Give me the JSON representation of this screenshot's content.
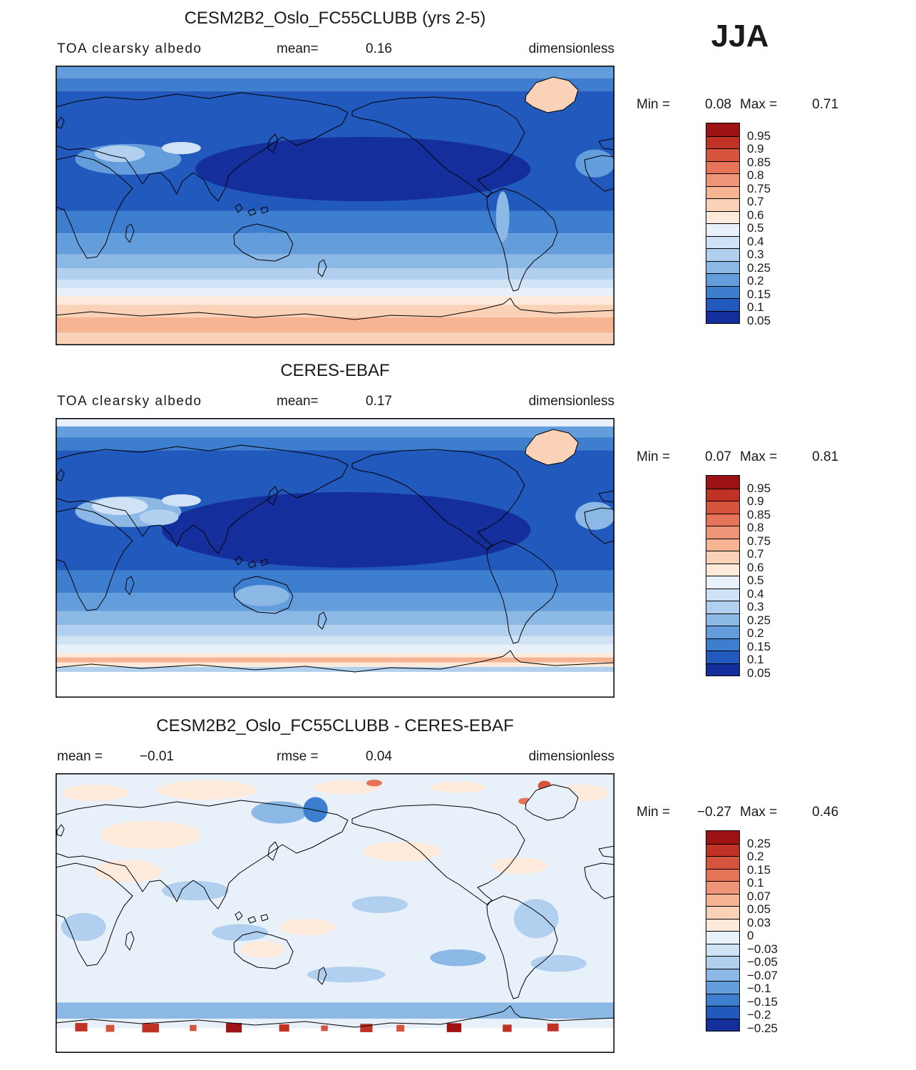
{
  "season": "JJA",
  "chart_data": {
    "type": "filled-contour-map-set",
    "projection": "cylindrical-equidistant 0-360E",
    "palette": [
      "#9e1214",
      "#c03226",
      "#d6543e",
      "#e57458",
      "#ef9477",
      "#f6b493",
      "#fad2b8",
      "#fdeadb",
      "#e8f1fa",
      "#d0e2f5",
      "#b1cfee",
      "#8cb8e6",
      "#639ddb",
      "#3d7ecf",
      "#2159bd",
      "#142f9b"
    ],
    "panels": [
      {
        "title": "CESM2B2_Oslo_FC55CLUBB (yrs 2-5)",
        "var_label": "TOA clearsky albedo",
        "stats": [
          {
            "label": "mean=",
            "value": "0.16"
          }
        ],
        "units": "dimensionless",
        "min_label": "Min =",
        "min_value": "0.08",
        "max_label": "Max =",
        "max_value": "0.71",
        "colorbar_ticks": [
          "0.95",
          "0.9",
          "0.85",
          "0.8",
          "0.75",
          "0.7",
          "0.6",
          "0.5",
          "0.4",
          "0.3",
          "0.25",
          "0.2",
          "0.15",
          "0.1",
          "0.05"
        ],
        "map": {
          "bands": [
            {
              "from": 0.0,
              "to": 0.045,
              "color": 12,
              "value": "0.15-0.2"
            },
            {
              "from": 0.045,
              "to": 0.09,
              "color": 13,
              "value": "0.1-0.15"
            },
            {
              "from": 0.09,
              "to": 0.52,
              "color": 14,
              "value": "0.05-0.1"
            },
            {
              "from": 0.52,
              "to": 0.6,
              "color": 13,
              "value": "0.1-0.15"
            },
            {
              "from": 0.6,
              "to": 0.675,
              "color": 12,
              "value": "0.15-0.2"
            },
            {
              "from": 0.675,
              "to": 0.725,
              "color": 11,
              "value": "0.2-0.25"
            },
            {
              "from": 0.725,
              "to": 0.765,
              "color": 10,
              "value": "0.25-0.3"
            },
            {
              "from": 0.765,
              "to": 0.795,
              "color": 9,
              "value": "0.3-0.4"
            },
            {
              "from": 0.795,
              "to": 0.825,
              "color": 8,
              "value": "0.4-0.5"
            },
            {
              "from": 0.825,
              "to": 0.855,
              "color": 7,
              "value": "0.5-0.6"
            },
            {
              "from": 0.855,
              "to": 0.9,
              "color": 6,
              "value": "0.6-0.7"
            },
            {
              "from": 0.9,
              "to": 0.955,
              "color": 5,
              "value": "0.7-0.75"
            },
            {
              "from": 0.955,
              "to": 1.0,
              "color": 6,
              "value": "0.6-0.7"
            }
          ],
          "patches": [
            {
              "cx": 0.55,
              "cy": 0.37,
              "rx": 0.3,
              "ry": 0.115,
              "color": 15
            },
            {
              "cx": 0.13,
              "cy": 0.335,
              "rx": 0.095,
              "ry": 0.055,
              "color": 12
            },
            {
              "cx": 0.115,
              "cy": 0.315,
              "rx": 0.045,
              "ry": 0.03,
              "color": 10
            },
            {
              "cx": 0.225,
              "cy": 0.295,
              "rx": 0.035,
              "ry": 0.022,
              "color": 9
            },
            {
              "cx": 0.37,
              "cy": 0.635,
              "rx": 0.048,
              "ry": 0.038,
              "color": 12
            },
            {
              "cx": 0.8,
              "cy": 0.54,
              "rx": 0.012,
              "ry": 0.09,
              "color": 11
            },
            {
              "cx": 0.965,
              "cy": 0.35,
              "rx": 0.035,
              "ry": 0.05,
              "color": 12
            }
          ],
          "greenland_fill": 6
        }
      },
      {
        "title": "CERES-EBAF",
        "var_label": "TOA clearsky albedo",
        "stats": [
          {
            "label": "mean=",
            "value": "0.17"
          }
        ],
        "units": "dimensionless",
        "min_label": "Min =",
        "min_value": "0.07",
        "max_label": "Max =",
        "max_value": "0.81",
        "colorbar_ticks": [
          "0.95",
          "0.9",
          "0.85",
          "0.8",
          "0.75",
          "0.7",
          "0.6",
          "0.5",
          "0.4",
          "0.3",
          "0.25",
          "0.2",
          "0.15",
          "0.1",
          "0.05"
        ],
        "map": {
          "bands": [
            {
              "from": 0.0,
              "to": 0.03,
              "color": 8,
              "value": "0.4-0.5"
            },
            {
              "from": 0.03,
              "to": 0.07,
              "color": 12,
              "value": "0.15-0.2"
            },
            {
              "from": 0.07,
              "to": 0.115,
              "color": 13,
              "value": "0.1-0.15"
            },
            {
              "from": 0.115,
              "to": 0.545,
              "color": 14,
              "value": "0.05-0.1"
            },
            {
              "from": 0.545,
              "to": 0.625,
              "color": 13,
              "value": "0.1-0.15"
            },
            {
              "from": 0.625,
              "to": 0.69,
              "color": 12,
              "value": "0.15-0.2"
            },
            {
              "from": 0.69,
              "to": 0.74,
              "color": 11,
              "value": "0.2-0.25"
            },
            {
              "from": 0.74,
              "to": 0.78,
              "color": 10,
              "value": "0.25-0.3"
            },
            {
              "from": 0.78,
              "to": 0.81,
              "color": 9,
              "value": "0.3-0.4"
            },
            {
              "from": 0.81,
              "to": 0.842,
              "color": 8,
              "value": "0.4-0.5"
            },
            {
              "from": 0.842,
              "to": 0.856,
              "color": 7,
              "value": "0.5-0.6"
            },
            {
              "from": 0.856,
              "to": 0.874,
              "color": 5,
              "value": "0.7-0.75"
            },
            {
              "from": 0.874,
              "to": 0.89,
              "color": 7,
              "value": "0.5-0.6"
            },
            {
              "from": 0.89,
              "to": 0.908,
              "color": 10,
              "value": "0.25-0.3"
            },
            {
              "from": 0.908,
              "to": 1.0,
              "color": -1,
              "value": "missing"
            }
          ],
          "patches": [
            {
              "cx": 0.52,
              "cy": 0.4,
              "rx": 0.33,
              "ry": 0.135,
              "color": 15
            },
            {
              "cx": 0.13,
              "cy": 0.335,
              "rx": 0.095,
              "ry": 0.055,
              "color": 11
            },
            {
              "cx": 0.115,
              "cy": 0.315,
              "rx": 0.05,
              "ry": 0.032,
              "color": 9
            },
            {
              "cx": 0.185,
              "cy": 0.355,
              "rx": 0.035,
              "ry": 0.028,
              "color": 10
            },
            {
              "cx": 0.225,
              "cy": 0.295,
              "rx": 0.035,
              "ry": 0.022,
              "color": 9
            },
            {
              "cx": 0.37,
              "cy": 0.635,
              "rx": 0.048,
              "ry": 0.038,
              "color": 11
            },
            {
              "cx": 0.965,
              "cy": 0.35,
              "rx": 0.035,
              "ry": 0.05,
              "color": 11
            }
          ],
          "greenland_fill": 6
        }
      },
      {
        "title": "CESM2B2_Oslo_FC55CLUBB - CERES-EBAF",
        "stats": [
          {
            "label": "mean =",
            "value": "−0.01"
          },
          {
            "label": "rmse =",
            "value": "0.04"
          }
        ],
        "units": "dimensionless",
        "min_label": "Min =",
        "min_value": "−0.27",
        "max_label": "Max =",
        "max_value": "0.46",
        "colorbar_ticks": [
          "0.25",
          "0.2",
          "0.15",
          "0.1",
          "0.07",
          "0.05",
          "0.03",
          "0",
          "−0.03",
          "−0.05",
          "−0.07",
          "−0.1",
          "−0.15",
          "−0.2",
          "−0.25"
        ],
        "map": {
          "bands": [
            {
              "from": 0.0,
              "to": 0.82,
              "color": 8,
              "value": "0 to -0.03"
            },
            {
              "from": 0.82,
              "to": 0.878,
              "color": 11,
              "value": "-0.05 to -0.1"
            },
            {
              "from": 0.878,
              "to": 0.912,
              "color": 8,
              "value": "0 to -0.03"
            },
            {
              "from": 0.912,
              "to": 1.0,
              "color": -1,
              "value": "missing"
            }
          ],
          "patches": [
            {
              "cx": 0.07,
              "cy": 0.07,
              "rx": 0.06,
              "ry": 0.03,
              "color": 7
            },
            {
              "cx": 0.27,
              "cy": 0.06,
              "rx": 0.09,
              "ry": 0.035,
              "color": 7
            },
            {
              "cx": 0.52,
              "cy": 0.05,
              "rx": 0.06,
              "ry": 0.025,
              "color": 7
            },
            {
              "cx": 0.72,
              "cy": 0.05,
              "rx": 0.05,
              "ry": 0.02,
              "color": 7
            },
            {
              "cx": 0.94,
              "cy": 0.07,
              "rx": 0.05,
              "ry": 0.03,
              "color": 7
            },
            {
              "cx": 0.17,
              "cy": 0.22,
              "rx": 0.09,
              "ry": 0.05,
              "color": 7
            },
            {
              "cx": 0.62,
              "cy": 0.28,
              "rx": 0.07,
              "ry": 0.035,
              "color": 7
            },
            {
              "cx": 0.13,
              "cy": 0.35,
              "rx": 0.06,
              "ry": 0.04,
              "color": 7
            },
            {
              "cx": 0.83,
              "cy": 0.33,
              "rx": 0.05,
              "ry": 0.03,
              "color": 7
            },
            {
              "cx": 0.45,
              "cy": 0.55,
              "rx": 0.05,
              "ry": 0.03,
              "color": 7
            },
            {
              "cx": 0.37,
              "cy": 0.63,
              "rx": 0.04,
              "ry": 0.03,
              "color": 7
            },
            {
              "cx": 0.4,
              "cy": 0.14,
              "rx": 0.05,
              "ry": 0.04,
              "color": 11
            },
            {
              "cx": 0.465,
              "cy": 0.13,
              "rx": 0.022,
              "ry": 0.045,
              "color": 13
            },
            {
              "cx": 0.25,
              "cy": 0.42,
              "rx": 0.06,
              "ry": 0.035,
              "color": 10
            },
            {
              "cx": 0.58,
              "cy": 0.47,
              "rx": 0.05,
              "ry": 0.03,
              "color": 10
            },
            {
              "cx": 0.86,
              "cy": 0.52,
              "rx": 0.04,
              "ry": 0.07,
              "color": 10
            },
            {
              "cx": 0.33,
              "cy": 0.57,
              "rx": 0.05,
              "ry": 0.03,
              "color": 10
            },
            {
              "cx": 0.72,
              "cy": 0.66,
              "rx": 0.05,
              "ry": 0.03,
              "color": 11
            },
            {
              "cx": 0.52,
              "cy": 0.72,
              "rx": 0.07,
              "ry": 0.028,
              "color": 10
            },
            {
              "cx": 0.9,
              "cy": 0.68,
              "rx": 0.05,
              "ry": 0.03,
              "color": 10
            },
            {
              "cx": 0.05,
              "cy": 0.55,
              "rx": 0.04,
              "ry": 0.05,
              "color": 10
            },
            {
              "cx": 0.875,
              "cy": 0.045,
              "rx": 0.012,
              "ry": 0.018,
              "color": 2
            },
            {
              "cx": 0.905,
              "cy": 0.065,
              "rx": 0.01,
              "ry": 0.014,
              "color": 2
            },
            {
              "cx": 0.84,
              "cy": 0.1,
              "rx": 0.012,
              "ry": 0.012,
              "color": 3
            },
            {
              "cx": 0.57,
              "cy": 0.035,
              "rx": 0.014,
              "ry": 0.012,
              "color": 3
            }
          ],
          "bottom_marks": [
            {
              "x": 0.035,
              "y": 0.893,
              "w": 0.022,
              "h": 0.03,
              "color": 1
            },
            {
              "x": 0.09,
              "y": 0.9,
              "w": 0.015,
              "h": 0.025,
              "color": 2
            },
            {
              "x": 0.155,
              "y": 0.895,
              "w": 0.03,
              "h": 0.032,
              "color": 1
            },
            {
              "x": 0.24,
              "y": 0.9,
              "w": 0.012,
              "h": 0.022,
              "color": 2
            },
            {
              "x": 0.305,
              "y": 0.893,
              "w": 0.028,
              "h": 0.034,
              "color": 0
            },
            {
              "x": 0.4,
              "y": 0.898,
              "w": 0.018,
              "h": 0.026,
              "color": 1
            },
            {
              "x": 0.475,
              "y": 0.902,
              "w": 0.012,
              "h": 0.02,
              "color": 2
            },
            {
              "x": 0.545,
              "y": 0.896,
              "w": 0.022,
              "h": 0.03,
              "color": 1
            },
            {
              "x": 0.61,
              "y": 0.9,
              "w": 0.014,
              "h": 0.024,
              "color": 2
            },
            {
              "x": 0.7,
              "y": 0.894,
              "w": 0.026,
              "h": 0.032,
              "color": 0
            },
            {
              "x": 0.8,
              "y": 0.899,
              "w": 0.016,
              "h": 0.026,
              "color": 1
            },
            {
              "x": 0.88,
              "y": 0.895,
              "w": 0.02,
              "h": 0.028,
              "color": 1
            }
          ],
          "greenland_fill": 8
        }
      }
    ]
  }
}
